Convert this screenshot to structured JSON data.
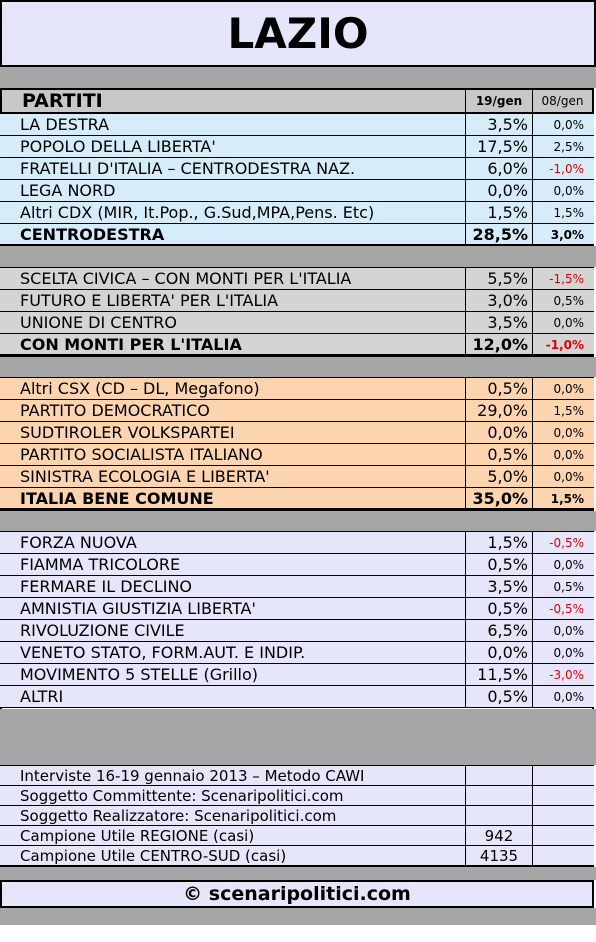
{
  "title": "LAZIO",
  "header": {
    "col_name": "PARTITI",
    "col_current": "19/gen",
    "col_previous": "08/gen"
  },
  "centrodestra": [
    {
      "name": "LA DESTRA",
      "current": "3,5%",
      "previous": "0,0%"
    },
    {
      "name": "POPOLO DELLA LIBERTA'",
      "current": "17,5%",
      "previous": "2,5%"
    },
    {
      "name": "FRATELLI D'ITALIA – CENTRODESTRA NAZ.",
      "current": "6,0%",
      "previous": "-1,0%"
    },
    {
      "name": "LEGA NORD",
      "current": "0,0%",
      "previous": "0,0%"
    },
    {
      "name": "Altri CDX (MIR, It.Pop., G.Sud,MPA,Pens. Etc)",
      "current": "1,5%",
      "previous": "1,5%"
    },
    {
      "name": "CENTRODESTRA",
      "current": "28,5%",
      "previous": "3,0%"
    }
  ],
  "monti": [
    {
      "name": "SCELTA CIVICA – CON MONTI PER L'ITALIA",
      "current": "5,5%",
      "previous": "-1,5%"
    },
    {
      "name": "FUTURO E LIBERTA' PER L'ITALIA",
      "current": "3,0%",
      "previous": "0,5%"
    },
    {
      "name": "UNIONE DI CENTRO",
      "current": "3,5%",
      "previous": "0,0%"
    },
    {
      "name": "CON MONTI PER L'ITALIA",
      "current": "12,0%",
      "previous": "-1,0%"
    }
  ],
  "csx": [
    {
      "name": "Altri CSX (CD – DL, Megafono)",
      "current": "0,5%",
      "previous": "0,0%"
    },
    {
      "name": "PARTITO DEMOCRATICO",
      "current": "29,0%",
      "previous": "1,5%"
    },
    {
      "name": "SUDTIROLER VOLKSPARTEI",
      "current": "0,0%",
      "previous": "0,0%"
    },
    {
      "name": "PARTITO SOCIALISTA ITALIANO",
      "current": "0,5%",
      "previous": "0,0%"
    },
    {
      "name": "SINISTRA ECOLOGIA E LIBERTA'",
      "current": "5,0%",
      "previous": "0,0%"
    },
    {
      "name": "ITALIA BENE COMUNE",
      "current": "35,0%",
      "previous": "1,5%"
    }
  ],
  "others": [
    {
      "name": "FORZA NUOVA",
      "current": "1,5%",
      "previous": "-0,5%"
    },
    {
      "name": "FIAMMA TRICOLORE",
      "current": "0,5%",
      "previous": "0,0%"
    },
    {
      "name": "FERMARE IL DECLINO",
      "current": "3,5%",
      "previous": "0,5%"
    },
    {
      "name": "AMNISTIA GIUSTIZIA LIBERTA'",
      "current": "0,5%",
      "previous": "-0,5%"
    },
    {
      "name": "RIVOLUZIONE CIVILE",
      "current": "6,5%",
      "previous": "0,0%"
    },
    {
      "name": "VENETO STATO, FORM.AUT. E INDIP.",
      "current": "0,0%",
      "previous": "0,0%"
    },
    {
      "name": "MOVIMENTO 5 STELLE (Grillo)",
      "current": "11,5%",
      "previous": "-3,0%"
    },
    {
      "name": "ALTRI",
      "current": "0,5%",
      "previous": "0,0%"
    }
  ],
  "info": [
    {
      "name": "Interviste 16-19 gennaio 2013 – Metodo CAWI",
      "value": ""
    },
    {
      "name": "Soggetto Committente: Scenaripolitici.com",
      "value": ""
    },
    {
      "name": "Soggetto Realizzatore: Scenaripolitici.com",
      "value": ""
    },
    {
      "name": "Campione Utile REGIONE (casi)",
      "value": "942"
    },
    {
      "name": "Campione Utile CENTRO-SUD (casi)",
      "value": "4135"
    }
  ],
  "footer": "© scenaripolitici.com",
  "colors": {
    "centrodestra": "#d6ecf8",
    "monti": "#d4d4d4",
    "csx": "#fcd5b0",
    "others": "#e6e6fa",
    "negative": "#e00000"
  }
}
